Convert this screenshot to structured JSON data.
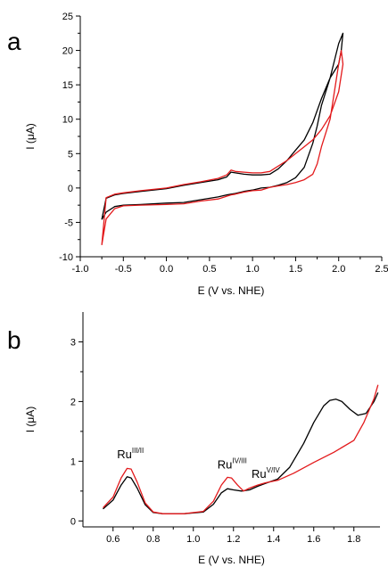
{
  "chart_data": [
    {
      "panel_label": "a",
      "type": "line",
      "xlabel": "E (V vs. NHE)",
      "ylabel": "I (μA)",
      "xlim": [
        -1.0,
        2.5
      ],
      "ylim": [
        -10,
        25
      ],
      "xticks": [
        "-1.0",
        "-0.5",
        "0.0",
        "0.5",
        "1.0",
        "1.5",
        "2.0",
        "2.5"
      ],
      "yticks": [
        "-10",
        "-5",
        "0",
        "5",
        "10",
        "15",
        "20",
        "25"
      ],
      "grid": false,
      "series": [
        {
          "color": "#000000",
          "x": [
            -0.75,
            -0.7,
            -0.6,
            -0.5,
            -0.3,
            0.0,
            0.2,
            0.4,
            0.6,
            0.7,
            0.75,
            0.8,
            0.9,
            1.0,
            1.1,
            1.2,
            1.3,
            1.4,
            1.5,
            1.6,
            1.7,
            1.75,
            1.8,
            1.9,
            1.95,
            2.0,
            2.05,
            2.03,
            2.0,
            1.9,
            1.8,
            1.7,
            1.6,
            1.5,
            1.4,
            1.3,
            1.2,
            1.1,
            1.0,
            0.9,
            0.8,
            0.75,
            0.7,
            0.6,
            0.4,
            0.2,
            0.0,
            -0.3,
            -0.5,
            -0.6,
            -0.7,
            -0.75
          ],
          "y": [
            -4.6,
            -3.5,
            -2.7,
            -2.5,
            -2.4,
            -2.2,
            -2.1,
            -1.7,
            -1.3,
            -1.0,
            -0.9,
            -0.8,
            -0.5,
            -0.3,
            0.0,
            0.1,
            0.4,
            0.8,
            1.5,
            3.0,
            6.5,
            9.0,
            12.0,
            16.0,
            18.5,
            21.0,
            22.5,
            20.0,
            18.0,
            16.0,
            13.0,
            9.5,
            7.0,
            5.5,
            4.0,
            2.8,
            2.0,
            1.9,
            1.9,
            2.0,
            2.2,
            2.3,
            1.6,
            1.2,
            0.8,
            0.4,
            -0.1,
            -0.5,
            -0.8,
            -1.0,
            -1.5,
            -4.6
          ]
        },
        {
          "color": "#e31a1c",
          "x": [
            -0.75,
            -0.7,
            -0.6,
            -0.5,
            -0.3,
            0.0,
            0.2,
            0.4,
            0.6,
            0.7,
            0.75,
            0.8,
            0.9,
            1.0,
            1.1,
            1.2,
            1.3,
            1.4,
            1.5,
            1.6,
            1.7,
            1.75,
            1.8,
            1.9,
            1.95,
            2.0,
            2.03,
            2.05,
            2.0,
            1.9,
            1.8,
            1.7,
            1.6,
            1.5,
            1.4,
            1.3,
            1.2,
            1.1,
            1.0,
            0.9,
            0.8,
            0.75,
            0.7,
            0.6,
            0.4,
            0.2,
            0.0,
            -0.3,
            -0.5,
            -0.6,
            -0.7,
            -0.75
          ],
          "y": [
            -8.3,
            -4.5,
            -3.0,
            -2.6,
            -2.5,
            -2.4,
            -2.3,
            -1.9,
            -1.6,
            -1.2,
            -1.0,
            -0.9,
            -0.6,
            -0.4,
            -0.3,
            0.1,
            0.3,
            0.5,
            0.8,
            1.2,
            2.0,
            3.5,
            6.0,
            10.0,
            14.0,
            18.0,
            20.0,
            18.0,
            14.0,
            10.5,
            8.5,
            7.0,
            6.0,
            5.0,
            4.0,
            3.2,
            2.4,
            2.2,
            2.2,
            2.3,
            2.4,
            2.6,
            1.9,
            1.4,
            0.9,
            0.5,
            0.0,
            -0.4,
            -0.7,
            -0.9,
            -1.4,
            -8.3
          ]
        }
      ]
    },
    {
      "panel_label": "b",
      "type": "line",
      "xlabel": "E (V vs. NHE)",
      "ylabel": "I (μA)",
      "xlim": [
        0.45,
        1.93
      ],
      "ylim": [
        -0.1,
        3.5
      ],
      "xticks": [
        "0.6",
        "0.8",
        "1.0",
        "1.2",
        "1.4",
        "1.6",
        "1.8"
      ],
      "xtick_values": [
        0.6,
        0.8,
        1.0,
        1.2,
        1.4,
        1.6,
        1.8
      ],
      "yticks": [
        "0",
        "1",
        "2",
        "3"
      ],
      "ytick_values": [
        0,
        1,
        2,
        3
      ],
      "grid": false,
      "annotations": [
        {
          "base": "Ru",
          "sup": "III/II",
          "x": 0.62,
          "y": 1.05
        },
        {
          "base": "Ru",
          "sup": "IV/III",
          "x": 1.12,
          "y": 0.88
        },
        {
          "base": "Ru",
          "sup": "V/IV",
          "x": 1.29,
          "y": 0.72
        }
      ],
      "series": [
        {
          "color": "#000000",
          "x": [
            0.55,
            0.6,
            0.64,
            0.67,
            0.69,
            0.72,
            0.76,
            0.8,
            0.85,
            0.95,
            1.05,
            1.1,
            1.14,
            1.17,
            1.2,
            1.24,
            1.28,
            1.32,
            1.36,
            1.42,
            1.48,
            1.55,
            1.6,
            1.65,
            1.68,
            1.71,
            1.74,
            1.78,
            1.82,
            1.86,
            1.9,
            1.92
          ],
          "y": [
            0.2,
            0.35,
            0.6,
            0.74,
            0.72,
            0.55,
            0.27,
            0.14,
            0.12,
            0.12,
            0.15,
            0.28,
            0.47,
            0.54,
            0.52,
            0.5,
            0.52,
            0.58,
            0.63,
            0.7,
            0.9,
            1.3,
            1.65,
            1.93,
            2.02,
            2.04,
            2.0,
            1.87,
            1.77,
            1.8,
            2.0,
            2.15
          ]
        },
        {
          "color": "#e31a1c",
          "x": [
            0.55,
            0.6,
            0.64,
            0.67,
            0.69,
            0.72,
            0.76,
            0.8,
            0.85,
            0.95,
            1.05,
            1.1,
            1.14,
            1.17,
            1.19,
            1.22,
            1.25,
            1.28,
            1.32,
            1.36,
            1.42,
            1.5,
            1.6,
            1.7,
            1.8,
            1.85,
            1.9,
            1.92
          ],
          "y": [
            0.22,
            0.4,
            0.72,
            0.88,
            0.87,
            0.65,
            0.3,
            0.15,
            0.12,
            0.12,
            0.16,
            0.33,
            0.6,
            0.73,
            0.72,
            0.6,
            0.5,
            0.55,
            0.6,
            0.64,
            0.68,
            0.8,
            0.98,
            1.15,
            1.35,
            1.65,
            2.05,
            2.28
          ]
        }
      ]
    }
  ]
}
